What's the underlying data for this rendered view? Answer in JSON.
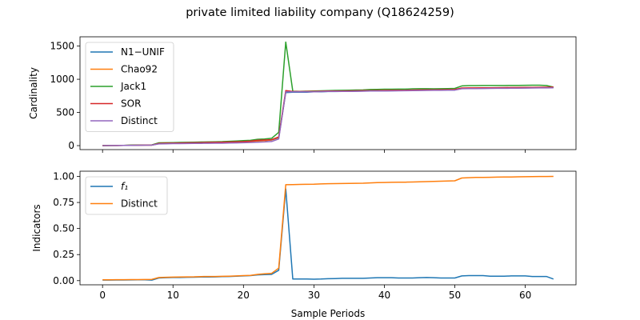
{
  "chart_data": {
    "title": "private limited liability company (Q18624259)",
    "xlabel": "Sample Periods",
    "x": [
      0,
      1,
      2,
      3,
      4,
      5,
      6,
      7,
      8,
      9,
      10,
      11,
      12,
      13,
      14,
      15,
      16,
      17,
      18,
      19,
      20,
      21,
      22,
      23,
      24,
      25,
      26,
      27,
      28,
      29,
      30,
      31,
      32,
      33,
      34,
      35,
      36,
      37,
      38,
      39,
      40,
      41,
      42,
      43,
      44,
      45,
      46,
      47,
      48,
      49,
      50,
      51,
      52,
      53,
      54,
      55,
      56,
      57,
      58,
      59,
      60,
      61,
      62,
      63,
      64
    ],
    "xticks": [
      0,
      10,
      20,
      30,
      40,
      50,
      60
    ],
    "xlim": [
      -3.2,
      67.2
    ],
    "panels": [
      {
        "type": "line",
        "ylabel": "Cardinality",
        "ylim": [
          -60,
          1640
        ],
        "yticks": [
          0,
          500,
          1000,
          1500
        ],
        "legend": "top-left",
        "series": [
          {
            "name": "N1−UNIF",
            "color": "#1f77b4",
            "values": [
              0,
              1,
              2,
              3,
              5,
              6,
              7,
              8,
              31,
              33,
              35,
              36,
              37,
              38,
              40,
              41,
              42,
              44,
              47,
              50,
              55,
              60,
              70,
              75,
              85,
              120,
              800,
              805,
              805,
              806,
              810,
              812,
              815,
              815,
              816,
              818,
              820,
              822,
              825,
              826,
              826,
              827,
              828,
              829,
              832,
              834,
              835,
              836,
              837,
              838,
              840,
              860,
              862,
              863,
              864,
              865,
              866,
              867,
              868,
              869,
              870,
              871,
              872,
              872,
              874
            ]
          },
          {
            "name": "Chao92",
            "color": "#ff7f0e",
            "values": [
              0,
              1,
              2,
              3,
              5,
              6,
              7,
              8,
              32,
              34,
              36,
              37,
              38,
              39,
              41,
              42,
              43,
              45,
              48,
              51,
              56,
              61,
              71,
              76,
              86,
              125,
              810,
              812,
              812,
              813,
              815,
              818,
              820,
              821,
              822,
              823,
              825,
              827,
              829,
              830,
              831,
              832,
              833,
              834,
              836,
              838,
              839,
              840,
              841,
              842,
              844,
              865,
              866,
              867,
              868,
              869,
              870,
              871,
              872,
              873,
              874,
              875,
              876,
              876,
              878
            ]
          },
          {
            "name": "Jack1",
            "color": "#2ca02c",
            "values": [
              0,
              2,
              3,
              4,
              8,
              9,
              10,
              11,
              42,
              44,
              46,
              48,
              50,
              52,
              54,
              56,
              58,
              60,
              65,
              70,
              75,
              80,
              95,
              100,
              110,
              200,
              1560,
              820,
              818,
              820,
              822,
              826,
              830,
              832,
              834,
              836,
              838,
              840,
              845,
              848,
              850,
              850,
              852,
              852,
              856,
              858,
              858,
              856,
              858,
              860,
              862,
              900,
              905,
              905,
              906,
              906,
              906,
              906,
              908,
              908,
              909,
              910,
              910,
              906,
              882
            ]
          },
          {
            "name": "SOR",
            "color": "#d62728",
            "values": [
              0,
              1,
              2,
              3,
              5,
              6,
              7,
              8,
              34,
              36,
              38,
              40,
              42,
              44,
              46,
              48,
              50,
              52,
              55,
              58,
              62,
              68,
              80,
              85,
              90,
              130,
              830,
              815,
              815,
              816,
              818,
              820,
              822,
              823,
              824,
              825,
              826,
              828,
              830,
              831,
              832,
              833,
              834,
              835,
              838,
              840,
              841,
              842,
              843,
              844,
              846,
              868,
              869,
              870,
              871,
              872,
              873,
              874,
              875,
              876,
              877,
              878,
              879,
              880,
              882
            ]
          },
          {
            "name": "Distinct",
            "color": "#9467bd",
            "values": [
              0,
              1,
              2,
              3,
              4,
              5,
              6,
              7,
              26,
              28,
              30,
              31,
              32,
              33,
              34,
              35,
              36,
              37,
              39,
              41,
              44,
              47,
              52,
              56,
              62,
              100,
              810,
              810,
              810,
              811,
              812,
              814,
              816,
              816,
              817,
              818,
              819,
              820,
              822,
              823,
              824,
              825,
              826,
              827,
              829,
              831,
              832,
              833,
              834,
              835,
              836,
              858,
              859,
              860,
              861,
              862,
              863,
              864,
              865,
              866,
              867,
              868,
              869,
              870,
              872
            ]
          }
        ]
      },
      {
        "type": "line",
        "ylabel": "Indicators",
        "ylim": [
          -0.04,
          1.05
        ],
        "yticks": [
          0.0,
          0.25,
          0.5,
          0.75,
          1.0
        ],
        "ytick_labels": [
          "0.00",
          "0.25",
          "0.50",
          "0.75",
          "1.00"
        ],
        "legend": "top-left",
        "series": [
          {
            "name": "f₁",
            "color": "#1f77b4",
            "values": [
              0.005,
              0.005,
              0.006,
              0.006,
              0.007,
              0.008,
              0.008,
              0.005,
              0.025,
              0.028,
              0.03,
              0.03,
              0.032,
              0.033,
              0.035,
              0.035,
              0.036,
              0.038,
              0.04,
              0.042,
              0.045,
              0.048,
              0.055,
              0.058,
              0.06,
              0.1,
              0.88,
              0.015,
              0.015,
              0.015,
              0.014,
              0.015,
              0.018,
              0.02,
              0.022,
              0.022,
              0.022,
              0.022,
              0.025,
              0.028,
              0.028,
              0.028,
              0.025,
              0.025,
              0.025,
              0.028,
              0.03,
              0.028,
              0.025,
              0.025,
              0.025,
              0.045,
              0.048,
              0.048,
              0.048,
              0.042,
              0.042,
              0.042,
              0.045,
              0.045,
              0.045,
              0.04,
              0.04,
              0.04,
              0.015
            ]
          },
          {
            "name": "Distinct",
            "color": "#ff7f0e",
            "values": [
              0.008,
              0.008,
              0.009,
              0.009,
              0.01,
              0.01,
              0.011,
              0.012,
              0.03,
              0.032,
              0.034,
              0.035,
              0.036,
              0.037,
              0.039,
              0.04,
              0.04,
              0.041,
              0.043,
              0.045,
              0.048,
              0.05,
              0.06,
              0.065,
              0.07,
              0.12,
              0.92,
              0.922,
              0.923,
              0.924,
              0.925,
              0.928,
              0.93,
              0.931,
              0.932,
              0.933,
              0.934,
              0.935,
              0.938,
              0.94,
              0.942,
              0.943,
              0.944,
              0.945,
              0.946,
              0.948,
              0.95,
              0.952,
              0.954,
              0.956,
              0.958,
              0.985,
              0.988,
              0.99,
              0.991,
              0.992,
              0.993,
              0.994,
              0.995,
              0.996,
              0.997,
              0.998,
              0.999,
              0.999,
              1.0
            ]
          }
        ]
      }
    ]
  }
}
